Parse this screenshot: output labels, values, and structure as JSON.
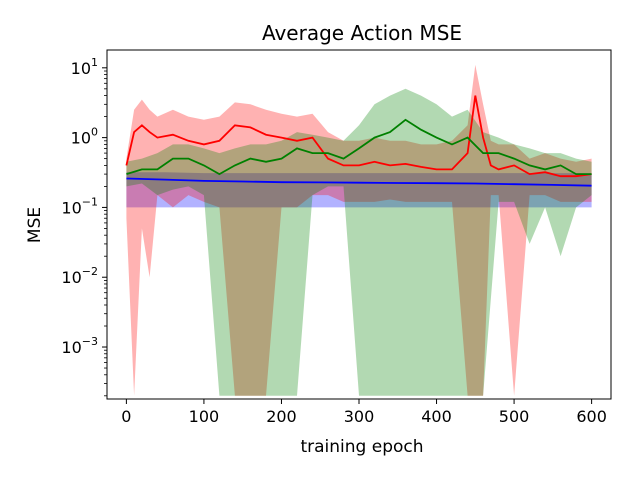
{
  "chart_data": {
    "type": "line",
    "title": "Average Action MSE",
    "xlabel": "training epoch",
    "ylabel": "MSE",
    "yscale": "log",
    "xlim": [
      -25,
      625
    ],
    "ylim": [
      0.00018,
      18
    ],
    "x_ticks": [
      0,
      100,
      200,
      300,
      400,
      500,
      600
    ],
    "y_ticks": [
      {
        "value": 0.001,
        "base": "10",
        "exp": "−3"
      },
      {
        "value": 0.01,
        "base": "10",
        "exp": "−2"
      },
      {
        "value": 0.1,
        "base": "10",
        "exp": "−1"
      },
      {
        "value": 1,
        "base": "10",
        "exp": "0"
      },
      {
        "value": 10,
        "base": "10",
        "exp": "1"
      }
    ],
    "series": [
      {
        "name": "blue",
        "color": "#0000ff",
        "fill_color": "#0000ff",
        "x": [
          0,
          50,
          100,
          150,
          200,
          250,
          300,
          350,
          400,
          450,
          500,
          550,
          600
        ],
        "mean": [
          0.26,
          0.25,
          0.24,
          0.235,
          0.23,
          0.228,
          0.226,
          0.224,
          0.222,
          0.22,
          0.215,
          0.21,
          0.205
        ],
        "upper": [
          0.32,
          0.32,
          0.31,
          0.31,
          0.31,
          0.31,
          0.31,
          0.31,
          0.31,
          0.31,
          0.31,
          0.31,
          0.31
        ],
        "lower": [
          0.1,
          0.1,
          0.1,
          0.1,
          0.1,
          0.1,
          0.1,
          0.1,
          0.1,
          0.1,
          0.1,
          0.1,
          0.1
        ]
      },
      {
        "name": "red",
        "color": "#ff0000",
        "fill_color": "#ff0000",
        "x": [
          0,
          10,
          20,
          30,
          40,
          60,
          80,
          100,
          120,
          140,
          160,
          180,
          200,
          220,
          240,
          260,
          280,
          300,
          320,
          340,
          360,
          380,
          400,
          420,
          440,
          450,
          460,
          470,
          480,
          500,
          520,
          540,
          560,
          580,
          600
        ],
        "mean": [
          0.4,
          1.2,
          1.5,
          1.2,
          1.0,
          1.1,
          0.9,
          0.8,
          0.9,
          1.5,
          1.4,
          1.1,
          1.0,
          0.9,
          1.0,
          0.5,
          0.4,
          0.4,
          0.45,
          0.4,
          0.42,
          0.38,
          0.35,
          0.35,
          0.6,
          4.0,
          1.0,
          0.4,
          0.35,
          0.4,
          0.3,
          0.32,
          0.28,
          0.28,
          0.3
        ],
        "upper": [
          0.5,
          2.5,
          3.5,
          2.5,
          2.0,
          2.5,
          2.0,
          1.8,
          2.0,
          3.2,
          3.0,
          2.5,
          2.2,
          2.0,
          2.2,
          1.2,
          0.9,
          0.9,
          1.0,
          0.9,
          0.9,
          0.8,
          0.8,
          0.9,
          1.5,
          11.0,
          3.0,
          0.9,
          0.8,
          0.8,
          0.5,
          0.6,
          0.5,
          0.45,
          0.5
        ],
        "lower": [
          0.07,
          0.0002,
          0.05,
          0.01,
          0.15,
          0.1,
          0.15,
          0.12,
          0.1,
          0.0002,
          0.0002,
          0.0002,
          0.1,
          0.1,
          0.15,
          0.15,
          0.12,
          0.12,
          0.12,
          0.13,
          0.12,
          0.12,
          0.12,
          0.12,
          0.0002,
          0.0002,
          0.0002,
          0.15,
          0.15,
          0.0002,
          0.15,
          0.15,
          0.12,
          0.12,
          0.12
        ]
      },
      {
        "name": "green",
        "color": "#008000",
        "fill_color": "#008000",
        "x": [
          0,
          20,
          40,
          60,
          80,
          100,
          120,
          140,
          160,
          180,
          200,
          220,
          240,
          260,
          280,
          300,
          320,
          340,
          360,
          380,
          400,
          420,
          440,
          460,
          480,
          500,
          520,
          540,
          560,
          580,
          600
        ],
        "mean": [
          0.3,
          0.35,
          0.35,
          0.5,
          0.5,
          0.4,
          0.3,
          0.4,
          0.5,
          0.45,
          0.5,
          0.7,
          0.6,
          0.6,
          0.5,
          0.7,
          1.0,
          1.2,
          1.8,
          1.3,
          1.0,
          0.8,
          1.0,
          0.6,
          0.6,
          0.5,
          0.4,
          0.35,
          0.4,
          0.3,
          0.3
        ],
        "upper": [
          0.45,
          0.5,
          0.6,
          0.8,
          0.8,
          0.7,
          0.6,
          0.7,
          0.8,
          0.8,
          0.9,
          1.2,
          1.1,
          1.0,
          0.9,
          1.5,
          3.0,
          4.0,
          5.0,
          4.0,
          3.0,
          2.0,
          2.5,
          1.2,
          1.0,
          0.8,
          0.7,
          0.6,
          0.6,
          0.5,
          0.45
        ],
        "lower": [
          0.2,
          0.22,
          0.15,
          0.18,
          0.2,
          0.15,
          0.0002,
          0.0002,
          0.0002,
          0.0002,
          0.0002,
          0.0002,
          0.15,
          0.2,
          0.2,
          0.0002,
          0.0002,
          0.0002,
          0.0002,
          0.0002,
          0.0002,
          0.0002,
          0.0002,
          0.0002,
          0.12,
          0.12,
          0.03,
          0.1,
          0.02,
          0.1,
          0.15
        ]
      }
    ]
  }
}
